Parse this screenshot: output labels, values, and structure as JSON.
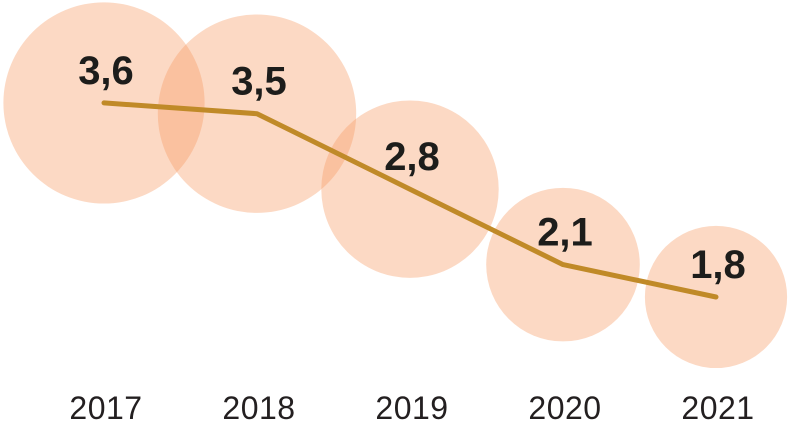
{
  "chart_data": {
    "type": "line",
    "subtype": "bubble-line",
    "categories": [
      "2017",
      "2018",
      "2019",
      "2020",
      "2021"
    ],
    "values": [
      3.6,
      3.5,
      2.8,
      2.1,
      1.8
    ],
    "value_labels": [
      "3,6",
      "3,5",
      "2,8",
      "2,1",
      "1,8"
    ],
    "title": "",
    "xlabel": "",
    "ylabel": "",
    "legend": "none",
    "grid": false,
    "bubble_area_proportional_to_value": true,
    "colors": {
      "background": "#FFFFFF",
      "bubble_fill": "#F89B63",
      "bubble_opacity": 0.38,
      "line": "#C08A28",
      "value_label": "#1D1D1B",
      "year_label": "#231F20"
    }
  }
}
